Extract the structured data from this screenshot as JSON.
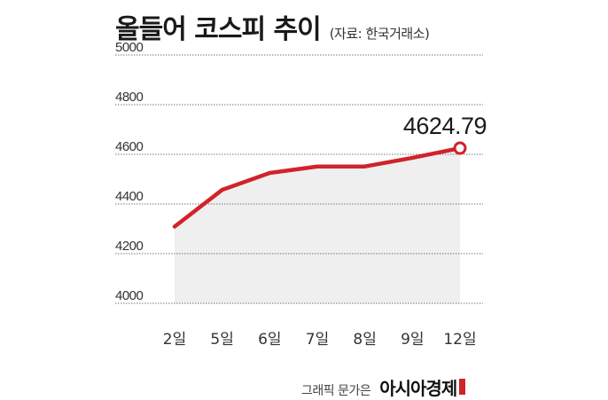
{
  "header": {
    "title": "올들어 코스피 추이",
    "source": "(자료: 한국거래소)"
  },
  "footer": {
    "credit": "그래픽 문가은",
    "brand": "아시아경제"
  },
  "colors": {
    "line": "#d0232a",
    "area": "#efefef",
    "grid": "#777777"
  },
  "chart_data": {
    "type": "area",
    "title": "올들어 코스피 추이",
    "xlabel": "",
    "ylabel": "",
    "categories": [
      "2일",
      "5일",
      "6일",
      "7일",
      "8일",
      "9일",
      "12일"
    ],
    "values": [
      4309,
      4457,
      4525,
      4551,
      4551,
      4586,
      4624.79
    ],
    "ylim": [
      4000,
      5000
    ],
    "yticks": [
      "5000",
      "4800",
      "4600",
      "4400",
      "4200",
      "4000"
    ],
    "annotation": {
      "index": 6,
      "text": "4624.79"
    },
    "grid": true,
    "legend": "none"
  }
}
